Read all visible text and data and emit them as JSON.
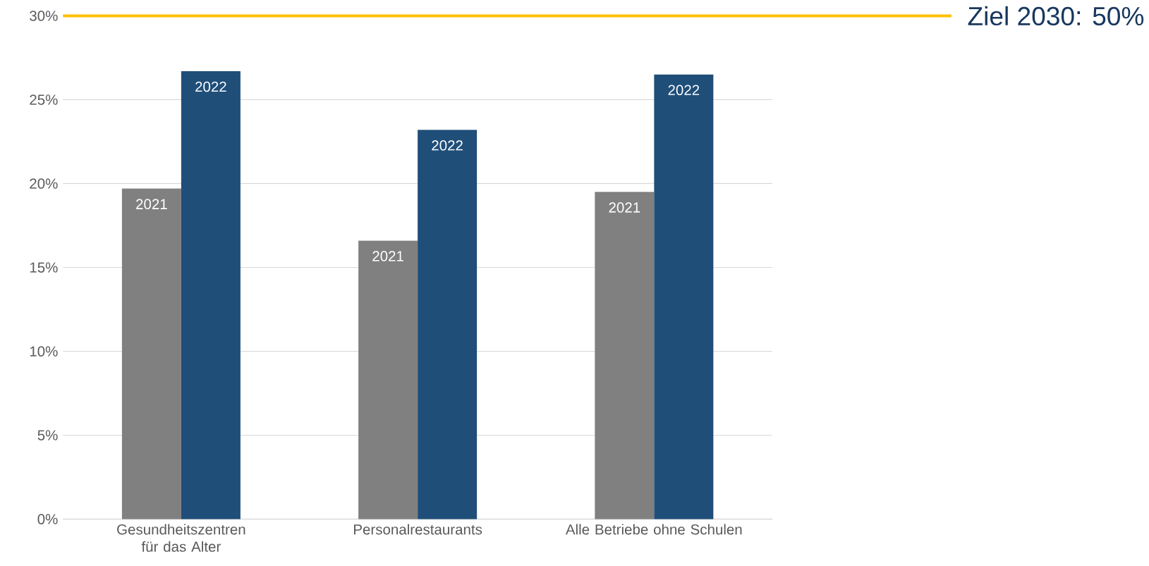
{
  "chart_data": {
    "type": "bar",
    "categories": [
      "Gesundheitszentren für das Alter",
      "Personalrestaurants",
      "Alle Betriebe ohne Schulen"
    ],
    "series": [
      {
        "name": "2021",
        "color": "#808080",
        "values": [
          19.7,
          16.6,
          19.5
        ]
      },
      {
        "name": "2022",
        "color": "#1f4e79",
        "values": [
          26.7,
          23.2,
          26.5
        ]
      }
    ],
    "ylim": [
      0,
      30
    ],
    "yticks": [
      {
        "value": 0,
        "label": "0%"
      },
      {
        "value": 5,
        "label": "5%"
      },
      {
        "value": 10,
        "label": "10%"
      },
      {
        "value": 15,
        "label": "15%"
      },
      {
        "value": 20,
        "label": "20%"
      },
      {
        "value": 25,
        "label": "25%"
      },
      {
        "value": 30,
        "label": "30%"
      }
    ],
    "grid": "y",
    "ref_lines": [
      {
        "axis": "y",
        "value": 30,
        "color": "#ffc000"
      }
    ],
    "annotations": [
      "Ziel 2030: 50%"
    ]
  }
}
